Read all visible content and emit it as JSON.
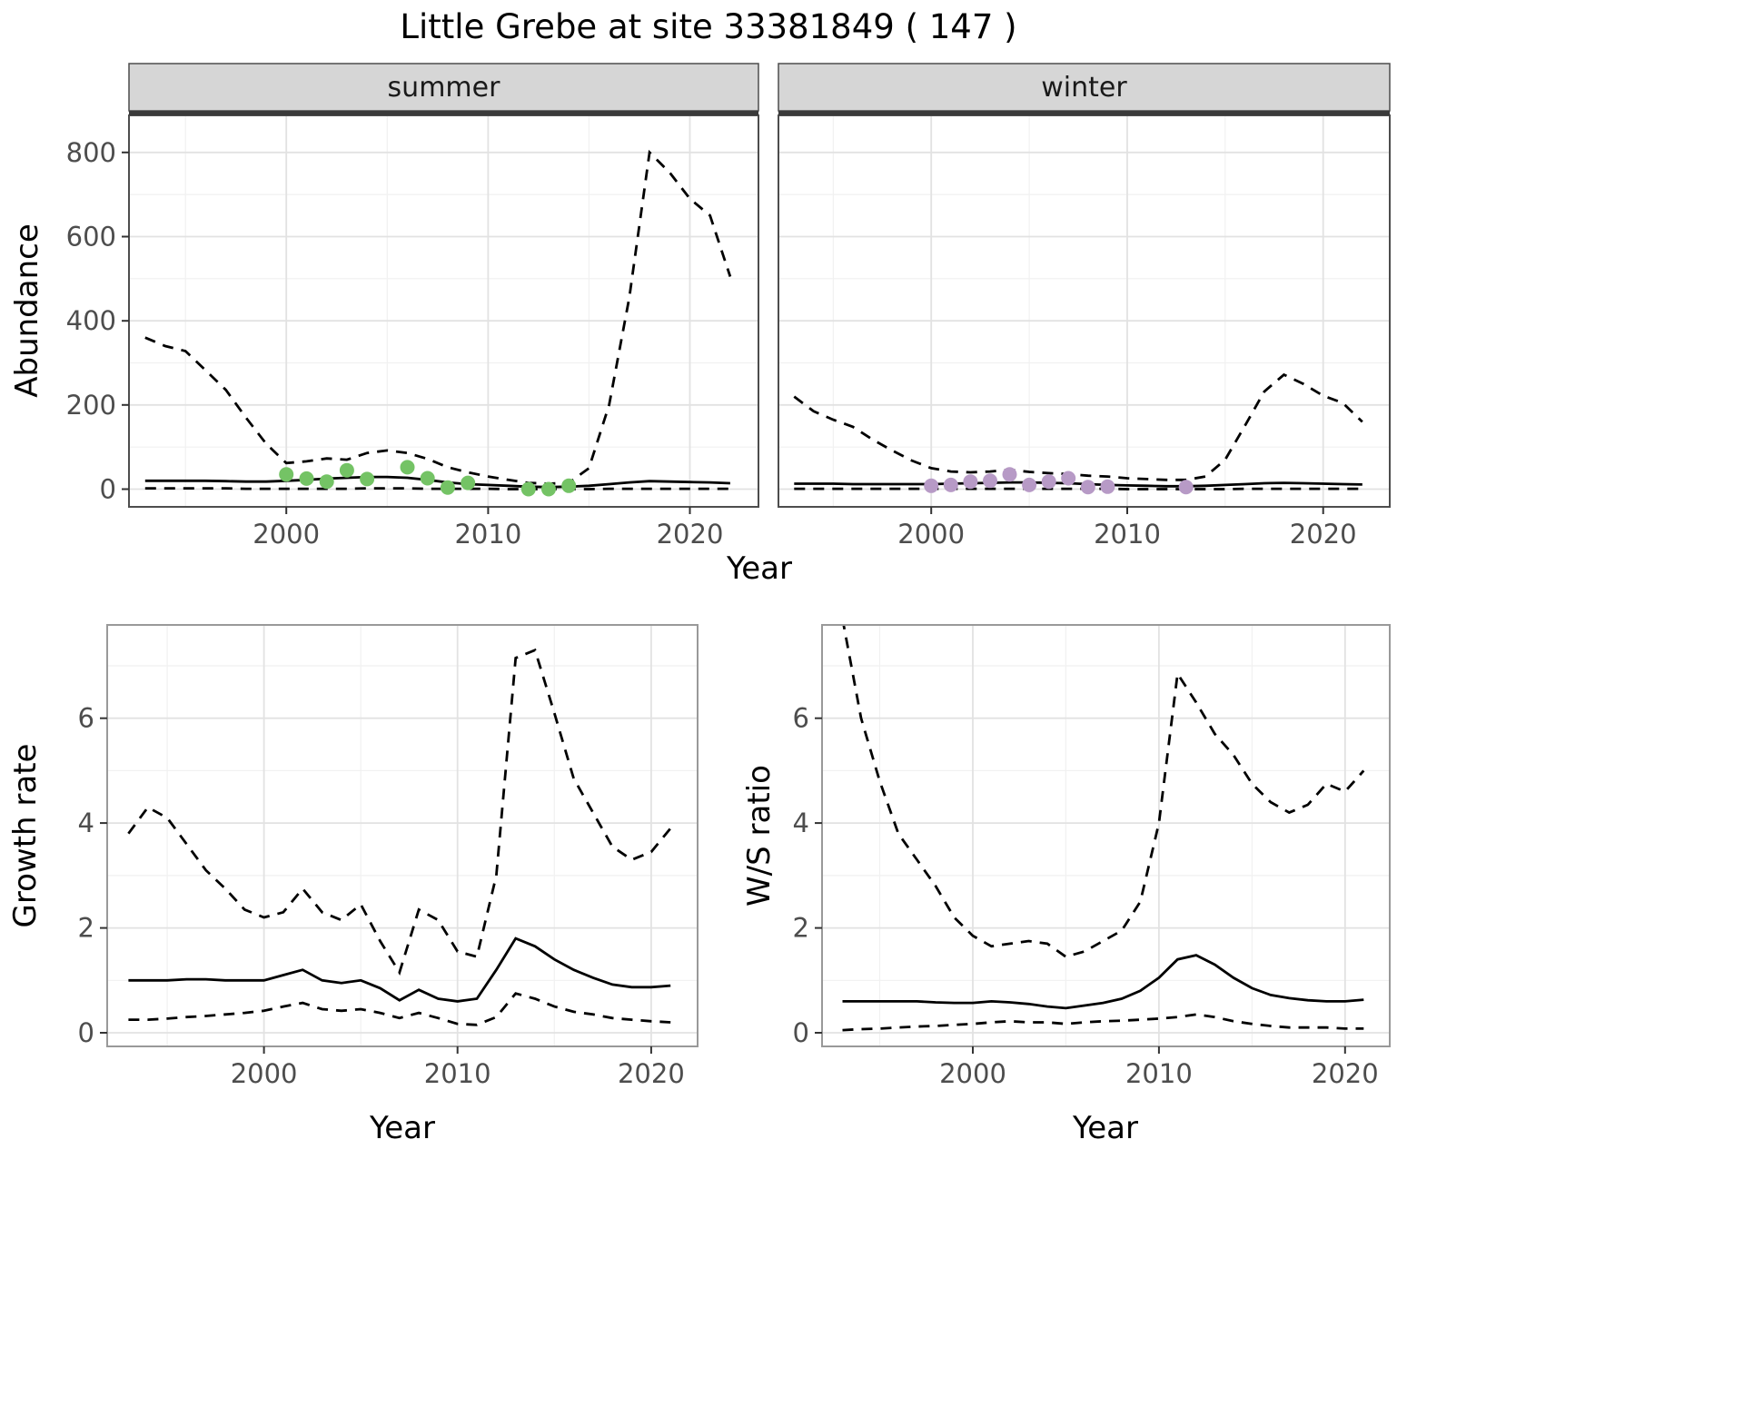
{
  "labels": {
    "title": "Little Grebe at site 33381849 ( 147 )",
    "facet_summer": "summer",
    "facet_winter": "winter",
    "ylab_abundance": "Abundance",
    "xlab_top": "Year",
    "ylab_growth": "Growth rate",
    "xlab_growth": "Year",
    "ylab_ws": "W/S ratio",
    "xlab_ws": "Year"
  },
  "colors": {
    "summer_point": "#74c365",
    "winter_point": "#b79ac6",
    "line": "#000000",
    "strip_bg": "#d6d6d6",
    "strip_border": "#4d4d4d",
    "strip_underline": "#3a3a3a",
    "panel_border_top": "#4d4d4d",
    "panel_border_bottom": "#999999",
    "grid_major": "#e2e2e2",
    "grid_minor": "#f1f1f1",
    "tick_mark": "#333333",
    "tick_text": "#4d4d4d",
    "panel_bg": "#ffffff"
  },
  "chart_data": [
    {
      "id": "abundance-summer",
      "type": "line",
      "facet": "summer",
      "xlabel": "Year",
      "ylabel": "Abundance",
      "xlim": [
        1992,
        2023
      ],
      "ylim": [
        0,
        800
      ],
      "x_ticks": [
        2000,
        2010,
        2020
      ],
      "x_minor": [
        1995,
        2005,
        2015
      ],
      "y_ticks": [
        0,
        200,
        400,
        600,
        800
      ],
      "y_minor": [
        100,
        300,
        500,
        700
      ],
      "x": [
        1993,
        1994,
        1995,
        1996,
        1997,
        1998,
        1999,
        2000,
        2001,
        2002,
        2003,
        2004,
        2005,
        2006,
        2007,
        2008,
        2009,
        2010,
        2011,
        2012,
        2013,
        2014,
        2015,
        2016,
        2017,
        2018,
        2019,
        2020,
        2021,
        2022
      ],
      "series": [
        {
          "name": "upper_ci",
          "style": "dashed",
          "values": [
            360,
            340,
            328,
            282,
            236,
            170,
            108,
            62,
            66,
            73,
            70,
            86,
            92,
            86,
            72,
            52,
            40,
            30,
            22,
            15,
            13,
            15,
            50,
            200,
            455,
            800,
            752,
            690,
            650,
            505
          ]
        },
        {
          "name": "median",
          "style": "solid",
          "values": [
            20,
            20,
            20,
            20,
            19,
            18,
            18,
            20,
            22,
            25,
            27,
            29,
            29,
            27,
            22,
            16,
            12,
            10,
            8,
            6,
            5,
            6,
            8,
            12,
            16,
            19,
            18,
            17,
            16,
            14
          ]
        },
        {
          "name": "lower_ci",
          "style": "dashed",
          "values": [
            2,
            2,
            2,
            2,
            2,
            1,
            1,
            1,
            1,
            1,
            1,
            2,
            2,
            2,
            1,
            1,
            1,
            1,
            0,
            0,
            0,
            0,
            0,
            1,
            1,
            1,
            1,
            1,
            1,
            1
          ]
        }
      ],
      "points": {
        "name": "observed_counts",
        "color": "#74c365",
        "x": [
          2000,
          2001,
          2002,
          2003,
          2004,
          2006,
          2007,
          2008,
          2009,
          2012,
          2013,
          2014
        ],
        "y": [
          35,
          25,
          18,
          45,
          24,
          52,
          26,
          4,
          15,
          0,
          0,
          8
        ]
      }
    },
    {
      "id": "abundance-winter",
      "type": "line",
      "facet": "winter",
      "xlabel": "Year",
      "ylabel": "Abundance",
      "xlim": [
        1992,
        2023
      ],
      "ylim": [
        0,
        800
      ],
      "x_ticks": [
        2000,
        2010,
        2020
      ],
      "x_minor": [
        1995,
        2005,
        2015
      ],
      "y_ticks": [
        0,
        200,
        400,
        600,
        800
      ],
      "y_minor": [
        100,
        300,
        500,
        700
      ],
      "x": [
        1993,
        1994,
        1995,
        1996,
        1997,
        1998,
        1999,
        2000,
        2001,
        2002,
        2003,
        2004,
        2005,
        2006,
        2007,
        2008,
        2009,
        2010,
        2011,
        2012,
        2013,
        2014,
        2015,
        2016,
        2017,
        2018,
        2019,
        2020,
        2021,
        2022
      ],
      "series": [
        {
          "name": "upper_ci",
          "style": "dashed",
          "values": [
            220,
            185,
            165,
            148,
            118,
            92,
            68,
            50,
            42,
            40,
            42,
            46,
            41,
            38,
            36,
            32,
            30,
            26,
            24,
            22,
            22,
            30,
            70,
            150,
            232,
            272,
            250,
            222,
            205,
            160
          ]
        },
        {
          "name": "median",
          "style": "solid",
          "values": [
            13,
            13,
            13,
            12,
            12,
            12,
            12,
            12,
            13,
            14,
            15,
            16,
            16,
            15,
            14,
            12,
            10,
            9,
            8,
            7,
            7,
            8,
            10,
            12,
            14,
            15,
            14,
            13,
            12,
            11
          ]
        },
        {
          "name": "lower_ci",
          "style": "dashed",
          "values": [
            1,
            1,
            1,
            1,
            1,
            1,
            1,
            1,
            1,
            1,
            1,
            1,
            1,
            1,
            1,
            1,
            1,
            0,
            0,
            0,
            0,
            0,
            0,
            1,
            1,
            1,
            1,
            1,
            1,
            1
          ]
        }
      ],
      "points": {
        "name": "observed_counts",
        "color": "#b79ac6",
        "x": [
          2000,
          2001,
          2002,
          2003,
          2004,
          2005,
          2006,
          2007,
          2008,
          2009,
          2013
        ],
        "y": [
          8,
          10,
          18,
          20,
          35,
          10,
          18,
          26,
          5,
          6,
          5
        ]
      }
    },
    {
      "id": "growth-rate",
      "type": "line",
      "xlabel": "Year",
      "ylabel": "Growth rate",
      "xlim": [
        1992,
        2022
      ],
      "ylim": [
        0,
        7.5
      ],
      "x_ticks": [
        2000,
        2010,
        2020
      ],
      "x_minor": [
        1995,
        2005,
        2015
      ],
      "y_ticks": [
        0,
        2,
        4,
        6
      ],
      "y_minor": [
        1,
        3,
        5,
        7
      ],
      "x": [
        1993,
        1994,
        1995,
        1996,
        1997,
        1998,
        1999,
        2000,
        2001,
        2002,
        2003,
        2004,
        2005,
        2006,
        2007,
        2008,
        2009,
        2010,
        2011,
        2012,
        2013,
        2014,
        2015,
        2016,
        2017,
        2018,
        2019,
        2020,
        2021
      ],
      "series": [
        {
          "name": "upper_ci",
          "style": "dashed",
          "values": [
            3.8,
            4.3,
            4.1,
            3.6,
            3.1,
            2.75,
            2.35,
            2.2,
            2.3,
            2.75,
            2.3,
            2.15,
            2.45,
            1.75,
            1.15,
            2.35,
            2.15,
            1.55,
            1.45,
            3.0,
            7.15,
            7.3,
            6.1,
            4.85,
            4.2,
            3.55,
            3.3,
            3.45,
            3.9
          ]
        },
        {
          "name": "median",
          "style": "solid",
          "values": [
            1.0,
            1.0,
            1.0,
            1.02,
            1.02,
            1.0,
            1.0,
            1.0,
            1.1,
            1.2,
            1.0,
            0.95,
            1.0,
            0.85,
            0.62,
            0.82,
            0.65,
            0.6,
            0.65,
            1.2,
            1.8,
            1.65,
            1.4,
            1.2,
            1.05,
            0.92,
            0.87,
            0.87,
            0.9
          ]
        },
        {
          "name": "lower_ci",
          "style": "dashed",
          "values": [
            0.25,
            0.25,
            0.27,
            0.3,
            0.32,
            0.35,
            0.38,
            0.42,
            0.5,
            0.57,
            0.45,
            0.42,
            0.45,
            0.38,
            0.28,
            0.38,
            0.28,
            0.17,
            0.15,
            0.3,
            0.75,
            0.65,
            0.5,
            0.4,
            0.35,
            0.28,
            0.25,
            0.22,
            0.2
          ]
        }
      ]
    },
    {
      "id": "ws-ratio",
      "type": "line",
      "xlabel": "Year",
      "ylabel": "W/S ratio",
      "xlim": [
        1992,
        2022
      ],
      "ylim": [
        0,
        7.5
      ],
      "x_ticks": [
        2000,
        2010,
        2020
      ],
      "x_minor": [
        1995,
        2005,
        2015
      ],
      "y_ticks": [
        0,
        2,
        4,
        6
      ],
      "y_minor": [
        1,
        3,
        5,
        7
      ],
      "x": [
        1993,
        1994,
        1995,
        1996,
        1997,
        1998,
        1999,
        2000,
        2001,
        2002,
        2003,
        2004,
        2005,
        2006,
        2007,
        2008,
        2009,
        2010,
        2011,
        2012,
        2013,
        2014,
        2015,
        2016,
        2017,
        2018,
        2019,
        2020,
        2021
      ],
      "series": [
        {
          "name": "upper_ci",
          "style": "dashed",
          "values": [
            7.9,
            6.0,
            4.8,
            3.8,
            3.3,
            2.8,
            2.2,
            1.85,
            1.65,
            1.7,
            1.75,
            1.7,
            1.45,
            1.55,
            1.75,
            1.95,
            2.5,
            4.0,
            6.85,
            6.3,
            5.7,
            5.3,
            4.75,
            4.4,
            4.2,
            4.35,
            4.75,
            4.6,
            5.0
          ]
        },
        {
          "name": "median",
          "style": "solid",
          "values": [
            0.6,
            0.6,
            0.6,
            0.6,
            0.6,
            0.58,
            0.57,
            0.57,
            0.6,
            0.58,
            0.55,
            0.5,
            0.47,
            0.52,
            0.57,
            0.65,
            0.8,
            1.05,
            1.4,
            1.48,
            1.3,
            1.05,
            0.85,
            0.72,
            0.66,
            0.62,
            0.6,
            0.6,
            0.63
          ]
        },
        {
          "name": "lower_ci",
          "style": "dashed",
          "values": [
            0.05,
            0.07,
            0.08,
            0.1,
            0.12,
            0.13,
            0.15,
            0.17,
            0.2,
            0.22,
            0.2,
            0.2,
            0.17,
            0.2,
            0.22,
            0.23,
            0.25,
            0.27,
            0.3,
            0.35,
            0.3,
            0.22,
            0.17,
            0.13,
            0.1,
            0.1,
            0.1,
            0.08,
            0.08
          ]
        }
      ]
    }
  ]
}
